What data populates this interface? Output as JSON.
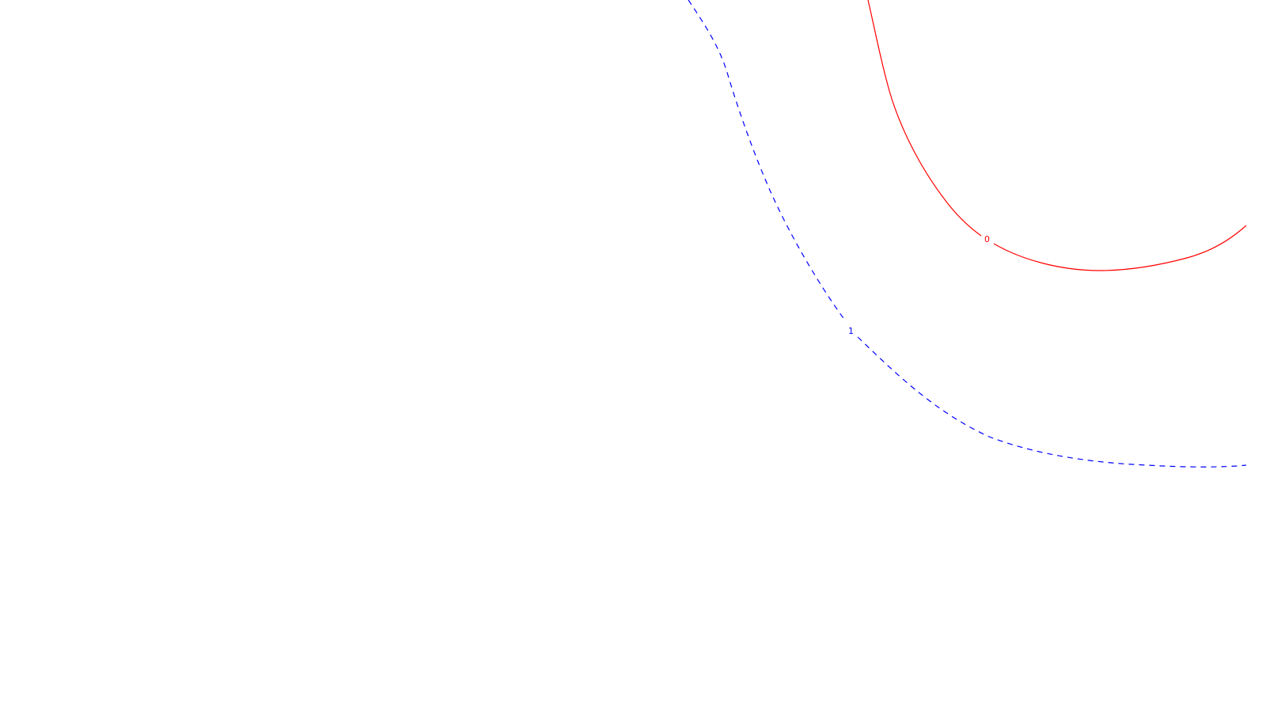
{
  "map": {
    "background_color": "#ffffff",
    "contours": [
      {
        "label": "0",
        "color": "#ff0000",
        "line_style": "solid"
      },
      {
        "label": "1",
        "color": "#0000ff",
        "line_style": "dashed"
      }
    ]
  }
}
